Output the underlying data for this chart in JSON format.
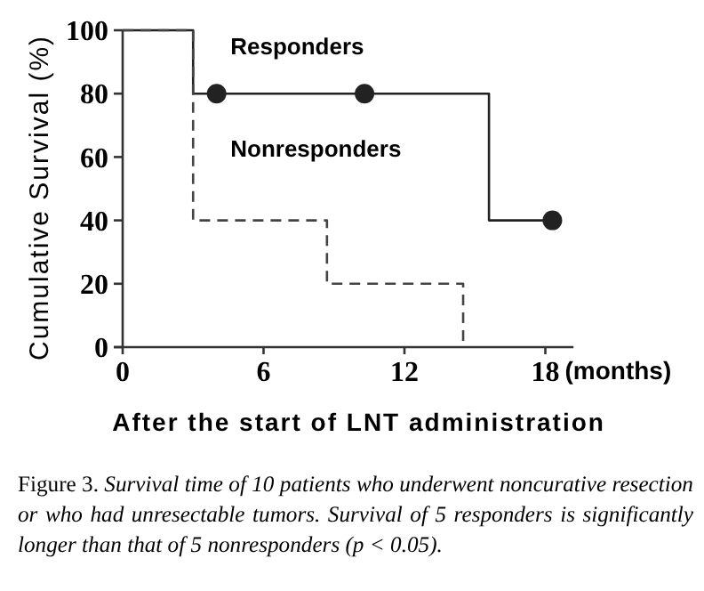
{
  "chart_data": {
    "type": "step",
    "xlabel": "After the start of LNT administration",
    "ylabel": "Cumulative Survival (%)",
    "xlim": [
      0,
      19.2
    ],
    "ylim": [
      0,
      100
    ],
    "xticks": [
      0,
      6,
      12,
      18
    ],
    "yticks": [
      0,
      20,
      40,
      60,
      80,
      100
    ],
    "grid": false,
    "series": [
      {
        "name": "Responders",
        "color": "#222222",
        "line_style": "solid",
        "marker": "none",
        "x": [
          0,
          3,
          4,
          10.3,
          15.6,
          18.3
        ],
        "values": [
          100,
          80,
          80,
          80,
          40,
          40
        ]
      },
      {
        "name": "Nonresponders",
        "color": "#444444",
        "line_style": "dashed",
        "marker": "none",
        "x": [
          0,
          3,
          8.7,
          14.5
        ],
        "values": [
          100,
          40,
          20,
          0
        ]
      },
      {
        "type": "scatter",
        "color": "#222222",
        "marker": "circle",
        "x": [
          4,
          10.3,
          18.3
        ],
        "values": [
          80,
          80,
          40
        ]
      }
    ],
    "annotations": [
      "(months)",
      "Figure 3.",
      "Survival time of 10 patients who underwent noncurative resection or who had unresectable tumors. Survival of 5 responders is significantly longer than that of 5 nonresponders (p < 0.05)."
    ]
  }
}
